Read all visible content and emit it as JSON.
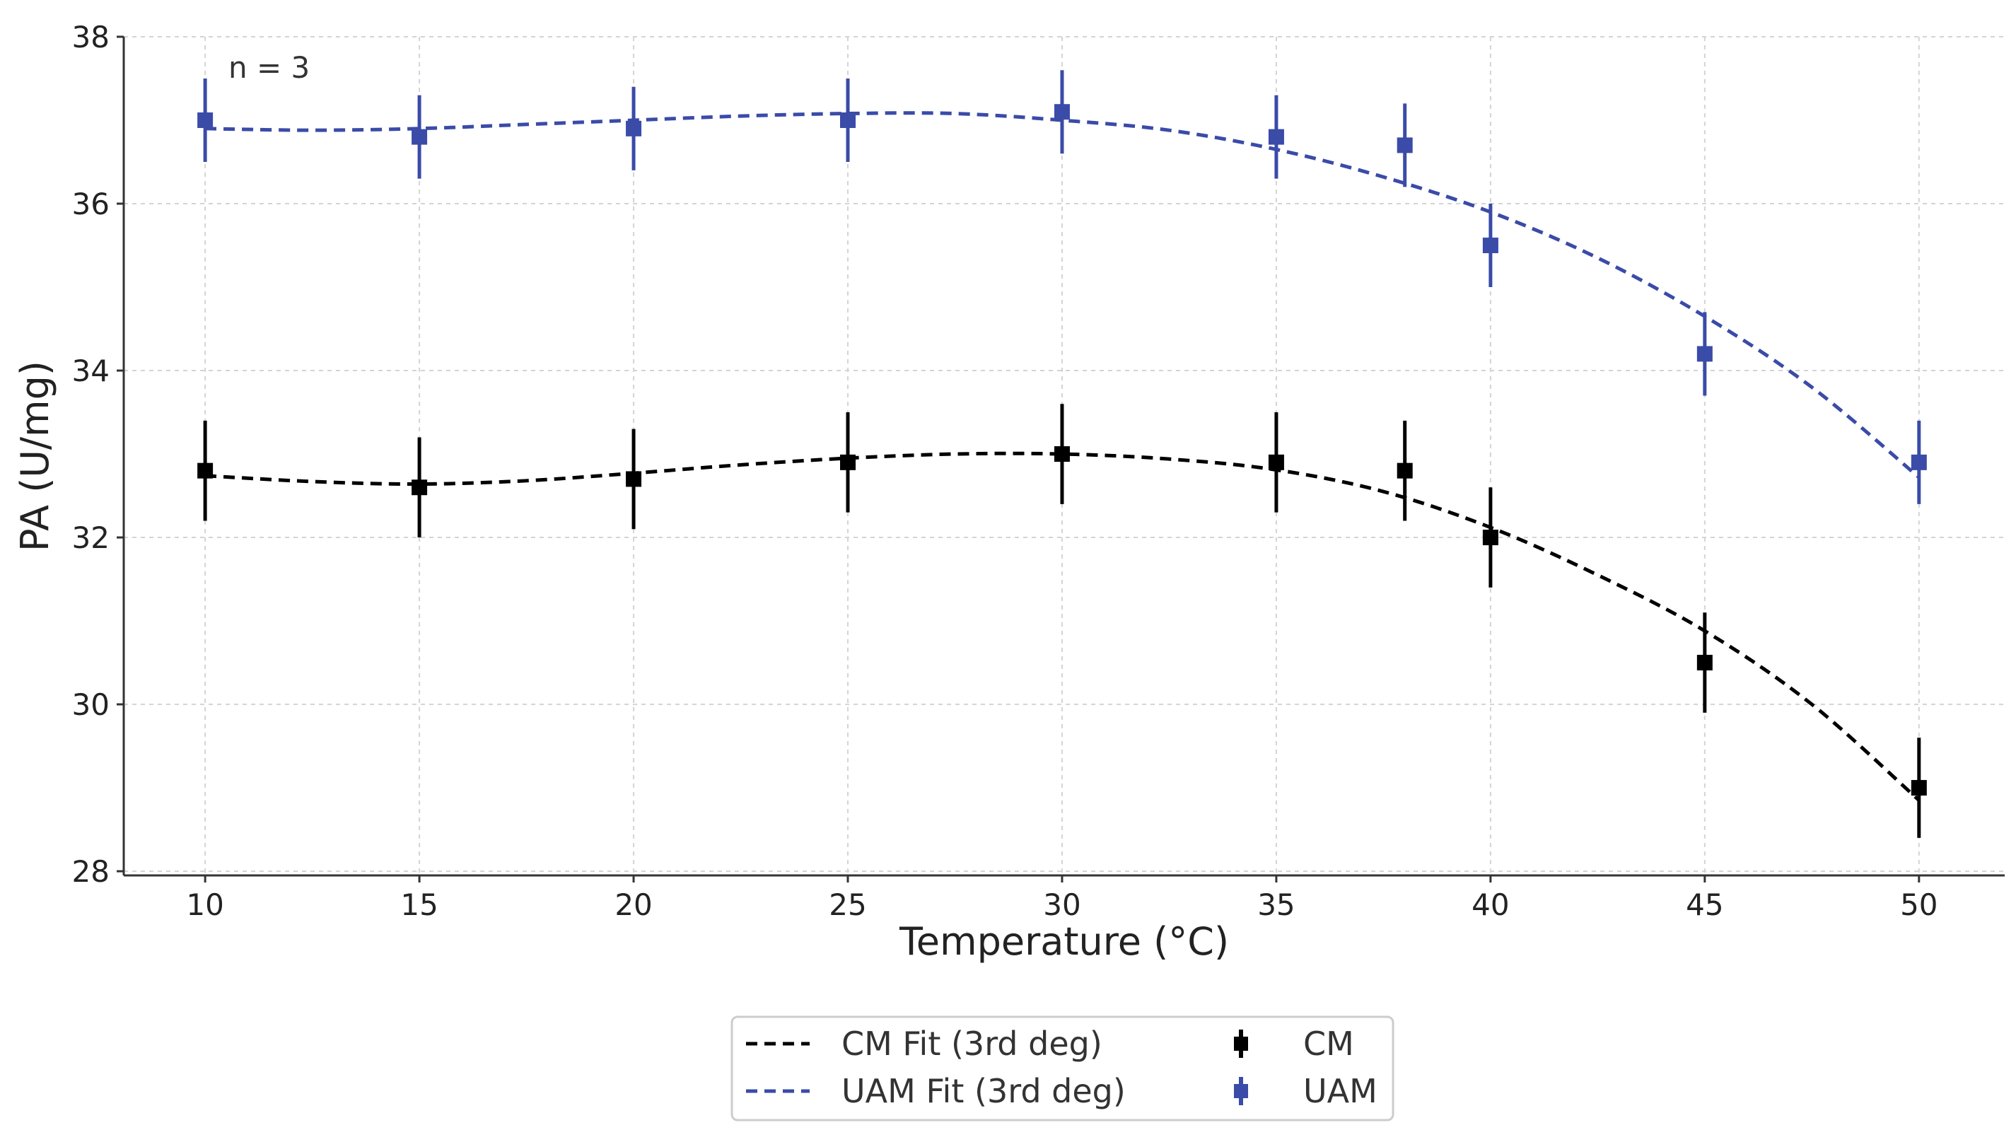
{
  "chart_data": {
    "type": "scatter",
    "title": "",
    "xlabel": "Temperature (°C)",
    "ylabel": "PA (U/mg)",
    "xlim": [
      8.1,
      52.0
    ],
    "ylim": [
      27.95,
      38.0
    ],
    "xticks": [
      10,
      15,
      20,
      25,
      30,
      35,
      40,
      45,
      50
    ],
    "yticks": [
      28,
      30,
      32,
      34,
      36,
      38
    ],
    "grid": true,
    "annotation": "n = 3",
    "legend_position": "bottom-center",
    "series": [
      {
        "name": "CM",
        "kind": "errorbar",
        "color": "#000000",
        "x": [
          10,
          15,
          20,
          25,
          30,
          35,
          38,
          40,
          45,
          50
        ],
        "y": [
          32.8,
          32.6,
          32.7,
          32.9,
          33.0,
          32.9,
          32.8,
          32.0,
          30.5,
          29.0
        ],
        "err": [
          0.6,
          0.6,
          0.6,
          0.6,
          0.6,
          0.6,
          0.6,
          0.6,
          0.6,
          0.6
        ]
      },
      {
        "name": "UAM",
        "kind": "errorbar",
        "color": "#3a4ba8",
        "x": [
          10,
          15,
          20,
          25,
          30,
          35,
          38,
          40,
          45,
          50
        ],
        "y": [
          37.0,
          36.8,
          36.9,
          37.0,
          37.1,
          36.8,
          36.7,
          35.5,
          34.2,
          32.9
        ],
        "err": [
          0.5,
          0.5,
          0.5,
          0.5,
          0.5,
          0.5,
          0.5,
          0.5,
          0.5,
          0.5
        ]
      },
      {
        "name": "CM Fit (3rd deg)",
        "kind": "fit",
        "color": "#000000",
        "x": [
          10,
          12.5,
          15,
          17.5,
          20,
          22.5,
          25,
          27.5,
          30,
          32.5,
          35,
          37.5,
          40,
          42.5,
          45,
          47.5,
          50
        ],
        "y": [
          32.74,
          32.67,
          32.64,
          32.68,
          32.77,
          32.87,
          32.95,
          33.0,
          33.0,
          32.94,
          32.81,
          32.55,
          32.12,
          31.55,
          30.88,
          30.0,
          28.85
        ]
      },
      {
        "name": "UAM Fit (3rd deg)",
        "kind": "fit",
        "color": "#3a4ba8",
        "x": [
          10,
          12.5,
          15,
          17.5,
          20,
          22.5,
          25,
          27.5,
          30,
          32.5,
          35,
          37.5,
          40,
          42.5,
          45,
          47.5,
          50
        ],
        "y": [
          36.9,
          36.88,
          36.9,
          36.95,
          37.0,
          37.05,
          37.08,
          37.08,
          37.0,
          36.88,
          36.65,
          36.32,
          35.9,
          35.35,
          34.65,
          33.8,
          32.72
        ]
      }
    ],
    "legend": {
      "entries": [
        {
          "label": "CM Fit (3rd deg)",
          "style": "dashed",
          "color": "#000000"
        },
        {
          "label": "UAM Fit (3rd deg)",
          "style": "dashed",
          "color": "#3a4ba8"
        },
        {
          "label": "CM",
          "style": "errorbar",
          "color": "#000000"
        },
        {
          "label": "UAM",
          "style": "errorbar",
          "color": "#3a4ba8"
        }
      ]
    }
  }
}
